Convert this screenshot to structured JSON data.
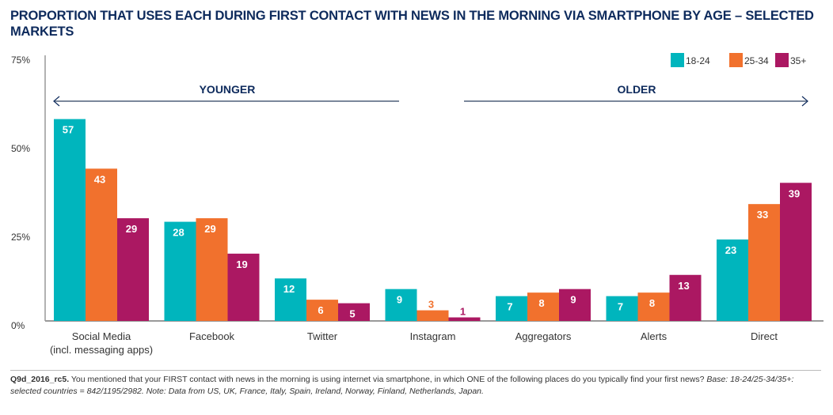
{
  "chart_data": {
    "type": "bar",
    "title": "PROPORTION THAT USES EACH DURING FIRST CONTACT WITH NEWS IN THE MORNING VIA SMARTPHONE BY AGE – SELECTED MARKETS",
    "xlabel": "",
    "ylabel": "",
    "ylim": [
      0,
      75
    ],
    "yticks": [
      "0%",
      "25%",
      "50%",
      "75%"
    ],
    "ytick_values": [
      0,
      25,
      50,
      75
    ],
    "grid": false,
    "legend_position": "top-right",
    "categories": [
      "Social Media\n(incl. messaging apps)",
      "Facebook",
      "Twitter",
      "Instagram",
      "Aggregators",
      "Alerts",
      "Direct"
    ],
    "category_lines": [
      [
        "Social Media",
        "(incl. messaging apps)"
      ],
      [
        "Facebook"
      ],
      [
        "Twitter"
      ],
      [
        "Instagram"
      ],
      [
        "Aggregators"
      ],
      [
        "Alerts"
      ],
      [
        "Direct"
      ]
    ],
    "series": [
      {
        "name": "18-24",
        "color": "#00b5bd",
        "values": [
          57,
          28,
          12,
          9,
          7,
          7,
          23
        ]
      },
      {
        "name": "25-34",
        "color": "#f1712d",
        "values": [
          43,
          29,
          6,
          3,
          8,
          8,
          33
        ]
      },
      {
        "name": "35+",
        "color": "#ab1862",
        "values": [
          29,
          19,
          5,
          1,
          9,
          13,
          39
        ]
      }
    ],
    "annotations": {
      "left_arrow_label": "YOUNGER",
      "right_arrow_label": "OLDER"
    }
  },
  "footnote": {
    "code": "Q9d_2016_rc5.",
    "question": " You mentioned that your FIRST contact with news in the morning is using internet via smartphone, in which ONE of the following places do you typically find your first news? ",
    "base": "Base: 18-24/25-34/35+: selected countries = 842/1195/2982. Note: Data from US, UK, France, Italy, Spain, Ireland, Norway, Finland, Netherlands, Japan."
  },
  "colors": {
    "title": "#0d2a5c",
    "axis": "#888888",
    "arrow": "#7a879b"
  }
}
